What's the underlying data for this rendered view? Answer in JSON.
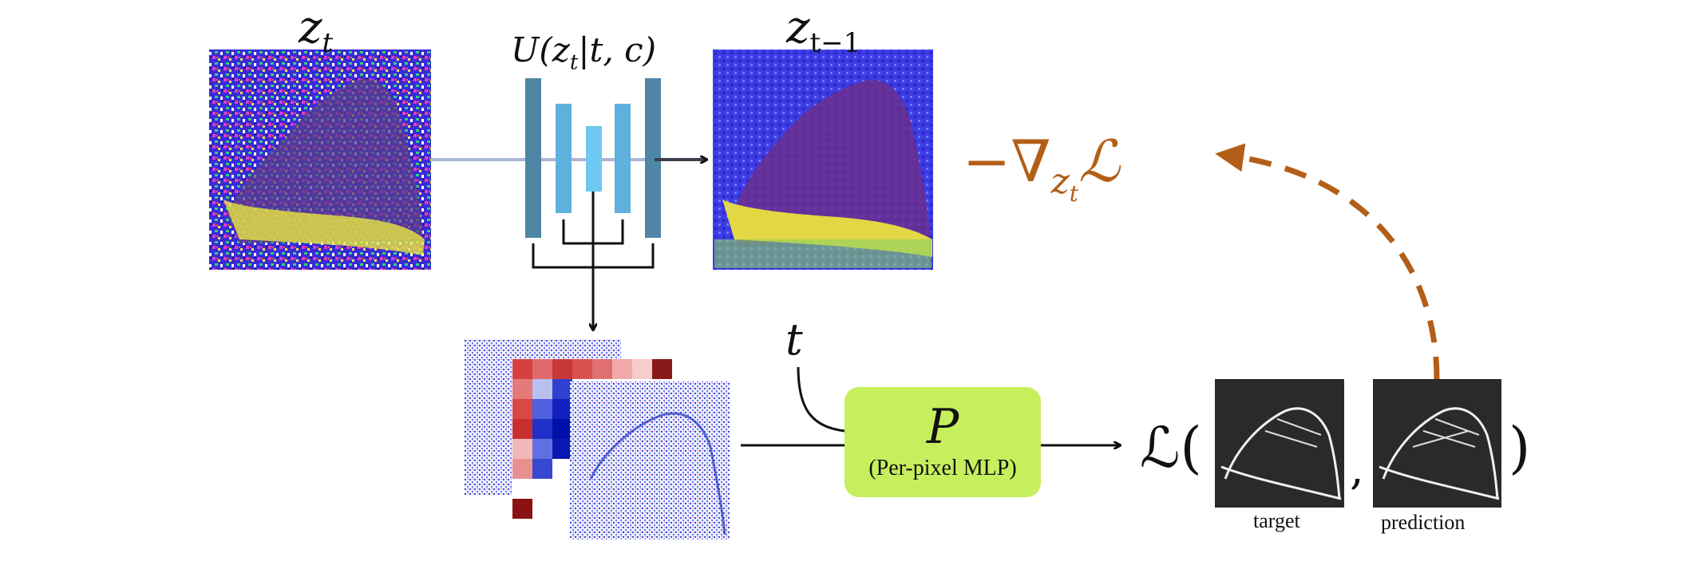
{
  "labels": {
    "zt": "z",
    "zt_sub": "t",
    "zt1": "z",
    "zt1_sub": "t−1",
    "unet": "U(z",
    "unet_sub": "t",
    "unet_rest": "|t, c)",
    "t_input": "t",
    "mlp_symbol": "P",
    "mlp_caption": "(Per-pixel MLP)",
    "loss_symbol": "ℒ(",
    "loss_close": ")",
    "loss_comma": ",",
    "target": "target",
    "prediction": "prediction",
    "grad_prefix": "−∇",
    "grad_sub": "z",
    "grad_subsub": "t",
    "grad_L": "ℒ"
  },
  "colors": {
    "encoder_dark": "#4e87a6",
    "encoder_mid": "#5fb0dc",
    "bottleneck": "#6ec8f2",
    "mlp_box": "#c6ef5e",
    "gradient_arrow": "#b35e17",
    "arrow": "#111111",
    "input_line": "#a9b6d6"
  },
  "icons": {
    "noisy_latent": "noisy-shoe-image",
    "denoised_latent": "denoised-shoe-image",
    "feature_maps": "stacked-feature-maps",
    "edge_target": "edge-map-target",
    "edge_prediction": "edge-map-prediction"
  }
}
